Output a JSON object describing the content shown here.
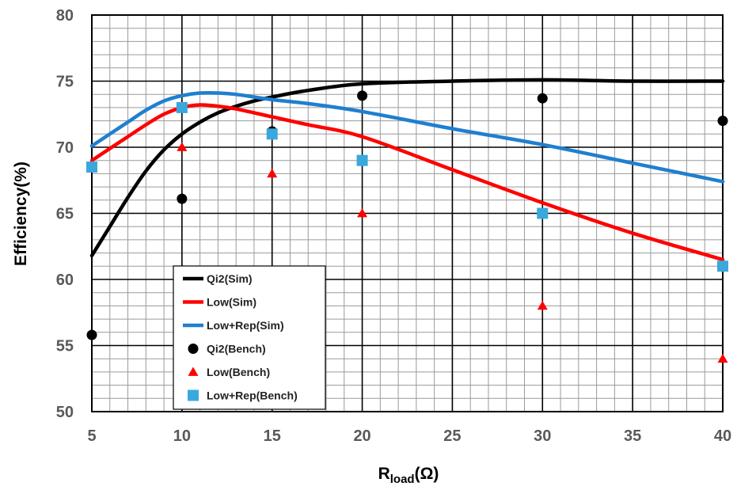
{
  "chart_data": {
    "type": "line",
    "title": "",
    "xlabel_main": "R",
    "xlabel_sub": "load",
    "xlabel_unit": "(Ω)",
    "ylabel": "Efficiency(%)",
    "xlim": [
      5,
      40
    ],
    "ylim": [
      50,
      80
    ],
    "x_ticks": [
      5,
      10,
      15,
      20,
      25,
      30,
      35,
      40
    ],
    "y_ticks": [
      50,
      55,
      60,
      65,
      70,
      75,
      80
    ],
    "grid": true,
    "legend_position": "lower-left",
    "series": [
      {
        "name": "Qi2(Sim)",
        "kind": "line",
        "color": "#000000",
        "x": [
          5,
          6,
          7,
          8,
          9,
          10,
          11,
          12,
          13,
          14,
          15,
          17,
          20,
          25,
          30,
          35,
          40
        ],
        "y": [
          61.8,
          64.0,
          66.2,
          68.2,
          69.8,
          71.0,
          71.9,
          72.6,
          73.1,
          73.5,
          73.8,
          74.3,
          74.8,
          75.0,
          75.1,
          75.0,
          75.0
        ]
      },
      {
        "name": "Low(Sim)",
        "kind": "line",
        "color": "#ff0000",
        "x": [
          5,
          6,
          7,
          8,
          9,
          10,
          11,
          12,
          13,
          15,
          17,
          20,
          25,
          30,
          35,
          40
        ],
        "y": [
          69.0,
          69.9,
          70.8,
          71.7,
          72.5,
          73.0,
          73.2,
          73.1,
          72.9,
          72.3,
          71.7,
          70.8,
          68.3,
          65.8,
          63.5,
          61.5
        ]
      },
      {
        "name": "Low+Rep(Sim)",
        "kind": "line",
        "color": "#1f7fd0",
        "x": [
          5,
          6,
          7,
          8,
          9,
          10,
          11,
          12,
          13,
          15,
          17,
          20,
          25,
          30,
          35,
          40
        ],
        "y": [
          70.1,
          71.0,
          71.9,
          72.8,
          73.5,
          73.9,
          74.1,
          74.1,
          74.0,
          73.6,
          73.3,
          72.7,
          71.4,
          70.2,
          68.8,
          67.4
        ]
      },
      {
        "name": "Qi2(Bench)",
        "kind": "circle",
        "color": "#000000",
        "x": [
          5,
          10,
          15,
          20,
          30,
          40
        ],
        "y": [
          55.8,
          66.1,
          71.2,
          73.9,
          73.7,
          72.0
        ]
      },
      {
        "name": "Low(Bench)",
        "kind": "triangle",
        "color": "#ff0000",
        "x": [
          10,
          15,
          20,
          30,
          40
        ],
        "y": [
          70.0,
          68.0,
          65.0,
          58.0,
          54.0
        ]
      },
      {
        "name": "Low+Rep(Bench)",
        "kind": "square",
        "color": "#3aa8dc",
        "x": [
          5,
          10,
          15,
          20,
          30,
          40
        ],
        "y": [
          68.5,
          73.0,
          71.0,
          69.0,
          65.0,
          61.0
        ]
      }
    ]
  }
}
